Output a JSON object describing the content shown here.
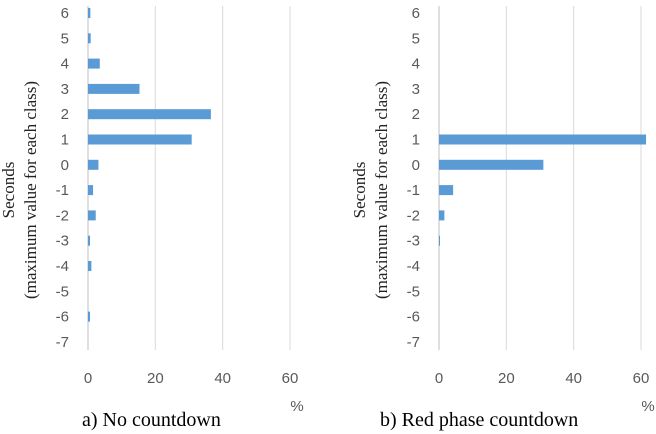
{
  "chart_data": [
    {
      "type": "bar",
      "orientation": "horizontal",
      "caption": "a)  No countdown",
      "ylabel": "Seconds",
      "ylabel2": "(maximum value for each class)",
      "xunit": "%",
      "categories": [
        "6",
        "5",
        "4",
        "3",
        "2",
        "1",
        "0",
        "-1",
        "-2",
        "-3",
        "-4",
        "-5",
        "-6",
        "-7"
      ],
      "values": [
        0.7,
        0.8,
        3.5,
        15.3,
        36.5,
        30.8,
        3.1,
        1.5,
        2.3,
        0.6,
        1.0,
        0.0,
        0.6,
        0.0
      ],
      "xticks": [
        0,
        20,
        40,
        60
      ],
      "xlim": [
        0,
        60
      ],
      "grid": true,
      "bar_color": "#5b9bd5"
    },
    {
      "type": "bar",
      "orientation": "horizontal",
      "caption": "b)  Red phase countdown",
      "ylabel": "Seconds",
      "ylabel2": "(maximum value for each class)",
      "xunit": "%",
      "categories": [
        "6",
        "5",
        "4",
        "3",
        "2",
        "1",
        "0",
        "-1",
        "-2",
        "-3",
        "-4",
        "-5",
        "-6",
        "-7"
      ],
      "values": [
        0,
        0,
        0,
        0,
        0,
        61.5,
        31.0,
        4.2,
        1.6,
        0.3,
        0,
        0,
        0,
        0
      ],
      "xticks": [
        0,
        20,
        40,
        60
      ],
      "xlim": [
        0,
        60
      ],
      "grid": true,
      "bar_color": "#5b9bd5"
    }
  ]
}
